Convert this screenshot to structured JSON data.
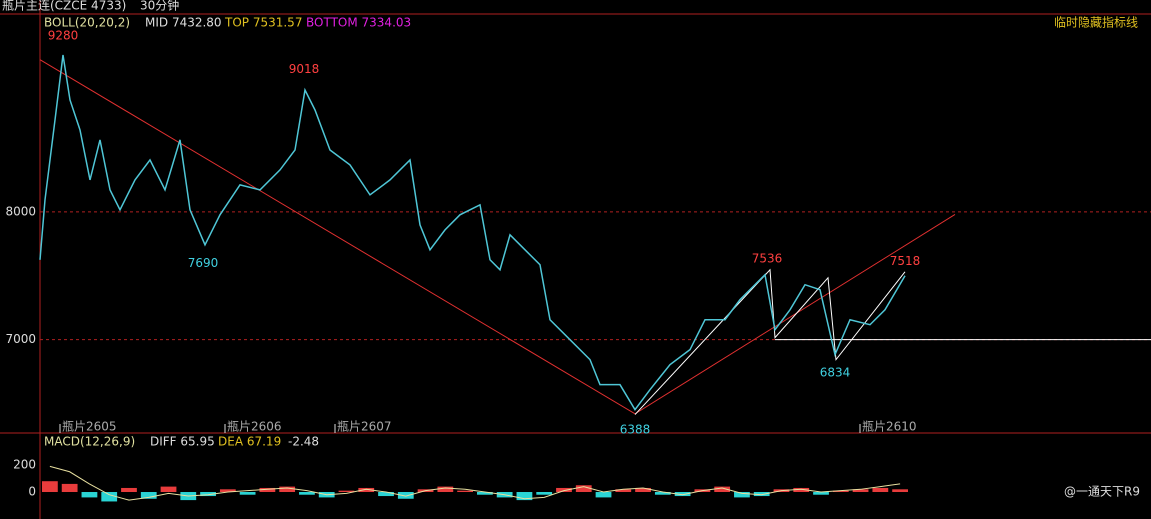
{
  "header": {
    "symbol": "瓶片主连(CZCE 4733)",
    "period": "30分钟",
    "hide_button": "临时隐藏指标线"
  },
  "boll": {
    "name": "BOLL(20,20,2)",
    "mid": "MID 7432.80",
    "top": "TOP 7531.57",
    "bottom": "BOTTOM 7334.03"
  },
  "macd_header": {
    "name": "MACD(12,26,9)",
    "diff": "DIFF 65.95",
    "dea": "DEA 67.19",
    "macd": "-2.48"
  },
  "watermark": "@一通天下R9",
  "chart_data": [
    {
      "type": "line",
      "color": "#4fc6d6",
      "grid_color": "#b02020",
      "x": [
        0,
        5,
        15,
        23,
        30,
        40,
        50,
        60,
        70,
        80,
        95,
        110,
        125,
        140,
        150,
        165,
        180,
        200,
        220,
        240,
        255,
        265,
        275,
        290,
        310,
        330,
        350,
        370,
        380,
        390,
        405,
        420,
        440,
        450,
        460,
        470,
        485,
        500,
        510,
        530,
        550,
        560,
        580,
        595,
        610,
        630,
        650,
        665,
        685,
        700,
        725,
        735,
        750,
        765,
        780,
        795,
        810,
        830,
        845,
        865
      ],
      "values": [
        7625,
        8094,
        8719,
        9227,
        8875,
        8641,
        8250,
        8563,
        8172,
        8016,
        8250,
        8406,
        8172,
        8563,
        8016,
        7742,
        7977,
        8211,
        8172,
        8328,
        8484,
        8953,
        8797,
        8484,
        8367,
        8133,
        8250,
        8406,
        7898,
        7703,
        7859,
        7977,
        8055,
        7625,
        7547,
        7820,
        7703,
        7586,
        7156,
        7000,
        6844,
        6648,
        6648,
        6453,
        6609,
        6805,
        6922,
        7156,
        7156,
        7313,
        7508,
        7078,
        7234,
        7430,
        7391,
        6883,
        7156,
        7117,
        7234,
        7500
      ],
      "xlim": [
        0,
        870
      ],
      "ylim": [
        6270,
        9540
      ],
      "yticks": [
        7000,
        8000
      ],
      "xticks": [
        {
          "value": 20,
          "label": "瓶片2605"
        },
        {
          "value": 185,
          "label": "瓶片2606"
        },
        {
          "value": 295,
          "label": "瓶片2607"
        },
        {
          "value": 820,
          "label": "瓶片2610"
        }
      ],
      "annotations": [
        {
          "x": 23,
          "value": 9280
        },
        {
          "x": 163,
          "value": 7690
        },
        {
          "x": 264,
          "value": 9018
        },
        {
          "x": 727,
          "value": 7536
        },
        {
          "x": 865,
          "value": 7518
        },
        {
          "x": 795,
          "value": 6834
        },
        {
          "x": 595,
          "value": 6388
        }
      ],
      "trend_red": {
        "x": [
          0,
          595,
          915
        ],
        "values": [
          9190,
          6420,
          7980
        ]
      },
      "trend_white": {
        "x": [
          595,
          730,
          735,
          788,
          796,
          865
        ],
        "values": [
          6414,
          7547,
          7016,
          7484,
          6844,
          7531
        ]
      },
      "support": {
        "x": [
          735,
          1111
        ],
        "values": [
          7000,
          7000
        ]
      }
    },
    {
      "type": "bar",
      "up_color": "#e83c3c",
      "down_color": "#2ad4d4",
      "line_color": "#e8e0a0",
      "values": [
        80,
        60,
        -40,
        -70,
        30,
        -50,
        40,
        -60,
        -30,
        20,
        -20,
        30,
        40,
        -20,
        -40,
        10,
        30,
        -30,
        -50,
        20,
        40,
        10,
        -20,
        -40,
        -60,
        -20,
        30,
        50,
        -40,
        20,
        30,
        -20,
        -30,
        20,
        40,
        -40,
        -30,
        20,
        30,
        -20,
        10,
        20,
        30,
        20
      ],
      "diff": [
        190,
        150,
        60,
        -20,
        -60,
        -40,
        -10,
        -30,
        -20,
        0,
        10,
        20,
        30,
        10,
        -20,
        -10,
        20,
        0,
        -30,
        10,
        30,
        20,
        0,
        -20,
        -50,
        -40,
        10,
        40,
        0,
        20,
        30,
        0,
        -20,
        10,
        30,
        -10,
        -20,
        10,
        20,
        0,
        10,
        20,
        40,
        60
      ],
      "ylim": [
        -200,
        415
      ],
      "yticks": [
        0,
        200
      ]
    }
  ]
}
